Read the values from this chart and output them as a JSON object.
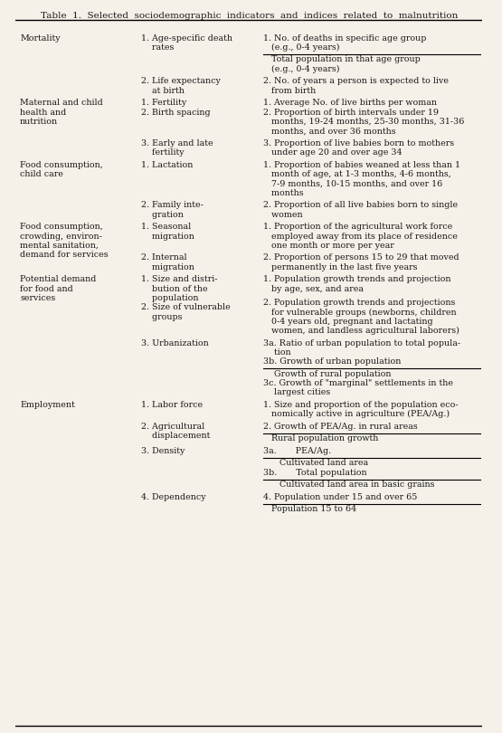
{
  "title": "Table  1.  Selected  sociodemographic  indicators  and  indices  related  to  malnutrition",
  "bg_color": "#f5f0e8",
  "text_color": "#1a1a1a",
  "rows": [
    {
      "col1": "Mortality",
      "col2": "1. Age-specific death\n    rates",
      "col3": "1. No. of deaths in specific age group\n    (e.g., 0-4 years)\n―\n    Total population in that age group\n    (e.g., 0-4 years)"
    },
    {
      "col1": "",
      "col2": "2. Life expectancy\n    at birth",
      "col3": "2. No. of years a person is expected to live\n    from birth"
    },
    {
      "col1": "Maternal and child\nhealth and\nnutrition",
      "col2": "1. Fertility\n2. Birth spacing",
      "col3": "1. Average No. of live births per woman\n2. Proportion of birth intervals under 19\n    months, 19-24 months, 25-30 months, 31-36\n    months, and over 36 months"
    },
    {
      "col1": "",
      "col2": "3. Early and late\n    fertility",
      "col3": "3. Proportion of live babies born to mothers\n    under age 20 and over age 34"
    },
    {
      "col1": "Food consumption,\nchild care",
      "col2": "1. Lactation",
      "col3": "1. Proportion of babies weaned at less than 1\n    month of age, at 1-3 months, 4-6 months,\n    7-9 months, 10-15 months, and over 16\n    months"
    },
    {
      "col1": "",
      "col2": "2. Family inte-\n    gration",
      "col3": "2. Proportion of all live babies born to single\n    women"
    },
    {
      "col1": "Food consumption,\ncrowding, environ-\nmental sanitation,\ndemand for services",
      "col2": "1. Seasonal\n    migration",
      "col3": "1. Proportion of the agricultural work force\n    employed away from its place of residence\n    one month or more per year"
    },
    {
      "col1": "",
      "col2": "2. Internal\n    migration",
      "col3": "2. Proportion of persons 15 to 29 that moved\n    permanently in the last five years"
    },
    {
      "col1": "Potential demand\nfor food and\nservices",
      "col2": "1. Size and distri-\n    bution of the\n    population\n2. Size of vulnerable\n    groups",
      "col3": "1. Population growth trends and projection\n    by age, sex, and area\n\n2. Population growth trends and projections\n    for vulnerable groups (newborns, children\n    0-4 years old, pregnant and lactating\n    women, and landless agricultural laborers)"
    },
    {
      "col1": "",
      "col2": "3. Urbanization",
      "col3": "3a. Ratio of urban population to total popula-\n      tion\n3b. Growth of urban population\n―\n      Growth of rural population\n3c. Growth of \"marginal\" settlements in the\n      largest cities"
    },
    {
      "col1": "Employment",
      "col2": "1. Labor force",
      "col3": "1. Size and proportion of the population eco-\n    nomically active in agriculture (PEA/Ag.)"
    },
    {
      "col1": "",
      "col2": "2. Agricultural\n    displacement",
      "col3": "2. Growth of PEA/Ag. in rural areas\n―\n    Rural population growth"
    },
    {
      "col1": "",
      "col2": "3. Density",
      "col3": "3a.       PEA/Ag.\n―\n      Cultivated land area\n3b.       Total population\n―\n      Cultivated land area in basic grains"
    },
    {
      "col1": "",
      "col2": "4. Dependency",
      "col3": "4. Population under 15 and over 65\n―\n    Population 15 to 64"
    }
  ]
}
